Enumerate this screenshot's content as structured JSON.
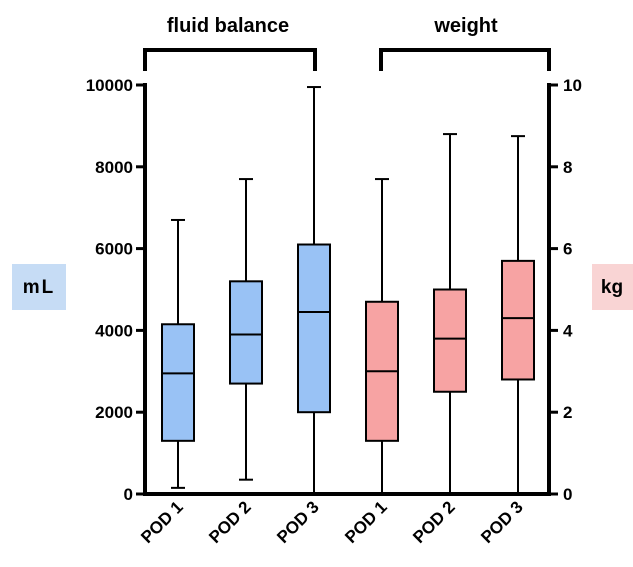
{
  "chart_data": {
    "type": "boxplot",
    "group_labels": [
      "fluid balance",
      "weight"
    ],
    "left_axis": {
      "unit_label": "mL",
      "ylim": [
        0,
        10000
      ],
      "ticks": [
        0,
        2000,
        4000,
        6000,
        8000,
        10000
      ],
      "tick_labels": [
        "0",
        "2000",
        "4000",
        "6000",
        "8000",
        "10000"
      ]
    },
    "right_axis": {
      "unit_label": "kg",
      "ylim": [
        0,
        10
      ],
      "ticks": [
        0,
        2,
        4,
        6,
        8,
        10
      ],
      "tick_labels": [
        "0",
        "2",
        "4",
        "6",
        "8",
        "10"
      ]
    },
    "categories": [
      "POD 1",
      "POD 2",
      "POD 3",
      "POD 1",
      "POD 2",
      "POD 3"
    ],
    "series": [
      {
        "axis": "left",
        "color": "#99c2f5",
        "boxes": [
          {
            "min": 150,
            "q1": 1300,
            "median": 2950,
            "q3": 4150,
            "max": 6700
          },
          {
            "min": 350,
            "q1": 2700,
            "median": 3900,
            "q3": 5200,
            "max": 7700
          },
          {
            "min": 0,
            "q1": 2000,
            "median": 4450,
            "q3": 6100,
            "max": 9950
          }
        ]
      },
      {
        "axis": "right",
        "color": "#f7a3a3",
        "boxes": [
          {
            "min": 0,
            "q1": 1.3,
            "median": 3.0,
            "q3": 4.7,
            "max": 7.7
          },
          {
            "min": 0,
            "q1": 2.5,
            "median": 3.8,
            "q3": 5.0,
            "max": 8.8
          },
          {
            "min": 0,
            "q1": 2.8,
            "median": 4.3,
            "q3": 5.7,
            "max": 8.75
          }
        ]
      }
    ],
    "unit_label_backgrounds": {
      "left": "#c6dcf5",
      "right": "#f9d4d4"
    }
  }
}
